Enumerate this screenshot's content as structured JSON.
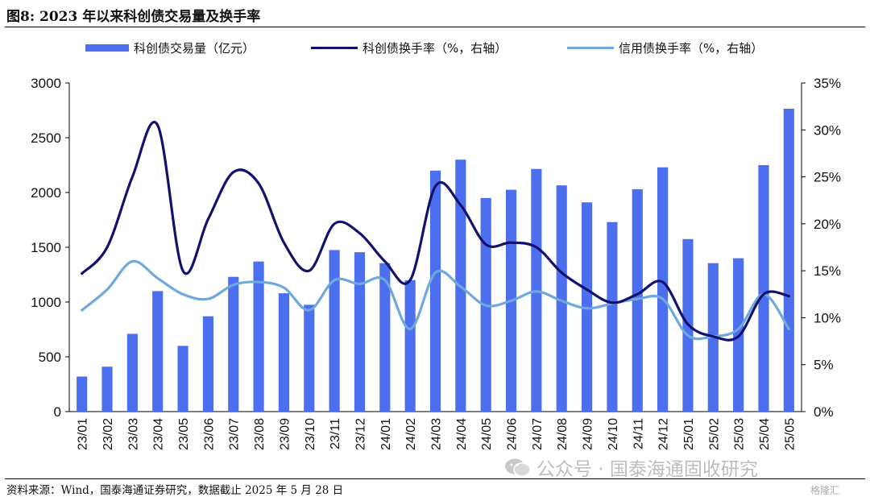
{
  "figure": {
    "title": "图8:  2023 年以来科创债交易量及换手率",
    "source": "资料来源：Wind，国泰海通证券研究，数据截止 2025 年 5 月 28 日",
    "watermark": "公众号 · 国泰海通固收研究",
    "logo": "格隆汇"
  },
  "chart_data": {
    "type": "bar",
    "categories": [
      "23/01",
      "23/02",
      "23/03",
      "23/04",
      "23/05",
      "23/06",
      "23/07",
      "23/08",
      "23/09",
      "23/10",
      "23/11",
      "23/12",
      "24/01",
      "24/02",
      "24/03",
      "24/04",
      "24/05",
      "24/06",
      "24/07",
      "24/08",
      "24/09",
      "24/10",
      "24/11",
      "24/12",
      "25/01",
      "25/02",
      "25/03",
      "25/04",
      "25/05"
    ],
    "series": [
      {
        "name": "科创债交易量（亿元）",
        "type": "bar",
        "axis": "left",
        "color": "#4c6ff0",
        "values": [
          320,
          410,
          710,
          1100,
          600,
          870,
          1230,
          1370,
          1080,
          975,
          1475,
          1455,
          1355,
          1200,
          2200,
          2300,
          1950,
          2025,
          2215,
          2065,
          1910,
          1730,
          2030,
          2230,
          1575,
          1355,
          1400,
          2250,
          2765
        ]
      },
      {
        "name": "科创债换手率（%，右轴）",
        "type": "line",
        "axis": "right",
        "color": "#12126e",
        "values": [
          14.7,
          17.5,
          25.0,
          30.5,
          15.0,
          20.5,
          25.5,
          24.3,
          18.0,
          15.0,
          20.0,
          19.0,
          16.0,
          14.0,
          24.0,
          22.0,
          17.8,
          18.0,
          17.5,
          14.8,
          13.0,
          11.6,
          12.5,
          13.8,
          9.3,
          8.0,
          8.0,
          12.5,
          12.3
        ]
      },
      {
        "name": "信用债换手率（%，右轴）",
        "type": "line",
        "axis": "right",
        "color": "#6fa8dc",
        "values": [
          10.8,
          13.0,
          16.0,
          14.2,
          12.5,
          12.0,
          13.5,
          13.8,
          13.2,
          10.8,
          14.0,
          13.6,
          14.0,
          8.8,
          14.8,
          13.3,
          11.3,
          11.8,
          12.8,
          11.8,
          11.0,
          11.5,
          12.0,
          12.0,
          8.1,
          8.0,
          8.8,
          12.5,
          8.8
        ]
      }
    ],
    "y_left": {
      "min": 0,
      "max": 3000,
      "ticks": [
        0,
        500,
        1000,
        1500,
        2000,
        2500,
        3000
      ]
    },
    "y_right": {
      "min": 0,
      "max": 35,
      "ticks": [
        "0%",
        "5%",
        "10%",
        "15%",
        "20%",
        "25%",
        "30%",
        "35%"
      ]
    },
    "grid": false,
    "legend_position": "top"
  }
}
